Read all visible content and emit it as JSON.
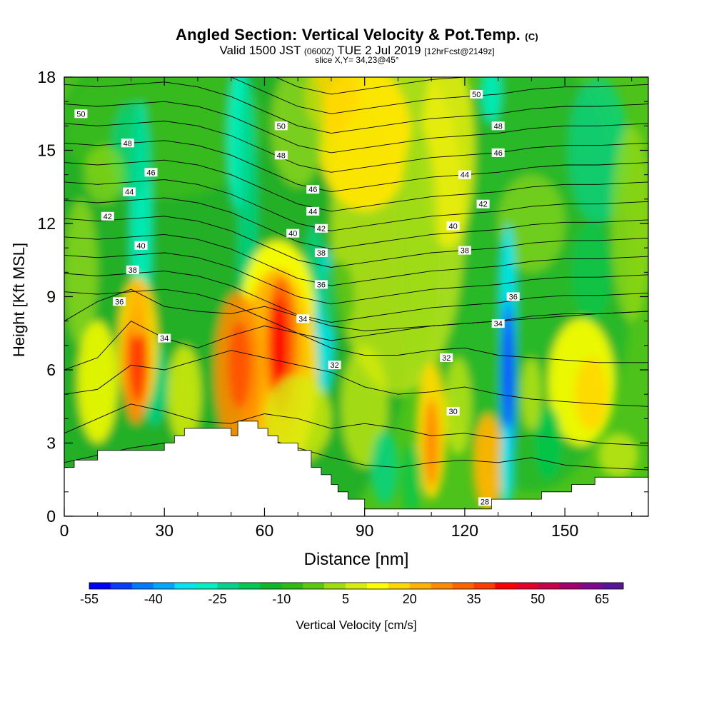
{
  "chart_data": {
    "type": "heatmap",
    "title": "Angled Section: Vertical Velocity & Pot.Temp.",
    "title_units": "(C)",
    "subtitle_main": "Valid 1500 JST",
    "subtitle_utc": "(0600Z)",
    "subtitle_date": "TUE 2 Jul 2019",
    "subtitle_fcst": "[12hrFcst@2149z]",
    "slice_label": "slice X,Y= 34,23@45°",
    "xlabel": "Distance [nm]",
    "ylabel": "Height [Kft MSL]",
    "xlim": [
      0,
      175
    ],
    "ylim": [
      0,
      18
    ],
    "x_ticks": [
      0,
      30,
      60,
      90,
      120,
      150
    ],
    "y_ticks": [
      0,
      3,
      6,
      9,
      12,
      15,
      18
    ],
    "colorbar": {
      "label": "Vertical Velocity [cm/s]",
      "tick_labels": [
        "-55",
        "-40",
        "-25",
        "-10",
        "5",
        "20",
        "35",
        "50",
        "65"
      ],
      "colors": [
        "#0000ff",
        "#0a3cff",
        "#0078ff",
        "#00a6ff",
        "#00e6f0",
        "#00f0c0",
        "#00d48a",
        "#00c850",
        "#10b52a",
        "#30b818",
        "#5ac814",
        "#9edc14",
        "#d8ec0c",
        "#ffff00",
        "#ffd800",
        "#ffb400",
        "#ff8c00",
        "#ff6400",
        "#ff3c00",
        "#ff0000",
        "#e60028",
        "#c8004b",
        "#a0006e",
        "#7d0a8c",
        "#5a1496"
      ]
    },
    "theta_contour_labels": [
      {
        "value": 50,
        "x": 5,
        "y": 16.5
      },
      {
        "value": 48,
        "x": 19,
        "y": 15.3
      },
      {
        "value": 46,
        "x": 26,
        "y": 14.1
      },
      {
        "value": 44,
        "x": 19.5,
        "y": 13.3
      },
      {
        "value": 42,
        "x": 13,
        "y": 12.3
      },
      {
        "value": 40,
        "x": 23,
        "y": 11.1
      },
      {
        "value": 38,
        "x": 20.5,
        "y": 10.1
      },
      {
        "value": 36,
        "x": 16.5,
        "y": 8.8
      },
      {
        "value": 34,
        "x": 30,
        "y": 7.3
      },
      {
        "value": 50,
        "x": 65,
        "y": 16.0
      },
      {
        "value": 48,
        "x": 65,
        "y": 14.8
      },
      {
        "value": 46,
        "x": 74.5,
        "y": 13.4
      },
      {
        "value": 44,
        "x": 74.5,
        "y": 12.5
      },
      {
        "value": 42,
        "x": 77,
        "y": 11.8
      },
      {
        "value": 40,
        "x": 68.5,
        "y": 11.6
      },
      {
        "value": 38,
        "x": 77,
        "y": 10.8
      },
      {
        "value": 36,
        "x": 77,
        "y": 9.5
      },
      {
        "value": 34,
        "x": 71.5,
        "y": 8.1
      },
      {
        "value": 32,
        "x": 81,
        "y": 6.2
      },
      {
        "value": 50,
        "x": 123.5,
        "y": 17.3
      },
      {
        "value": 48,
        "x": 130,
        "y": 16.0
      },
      {
        "value": 46,
        "x": 130,
        "y": 14.9
      },
      {
        "value": 44,
        "x": 120,
        "y": 14.0
      },
      {
        "value": 42,
        "x": 125.5,
        "y": 12.8
      },
      {
        "value": 40,
        "x": 116.5,
        "y": 11.9
      },
      {
        "value": 38,
        "x": 120,
        "y": 10.9
      },
      {
        "value": 36,
        "x": 134.5,
        "y": 9.0
      },
      {
        "value": 34,
        "x": 130,
        "y": 7.9
      },
      {
        "value": 32,
        "x": 114.5,
        "y": 6.5
      },
      {
        "value": 30,
        "x": 116.5,
        "y": 4.3
      },
      {
        "value": 28,
        "x": 126,
        "y": 0.6
      }
    ]
  }
}
